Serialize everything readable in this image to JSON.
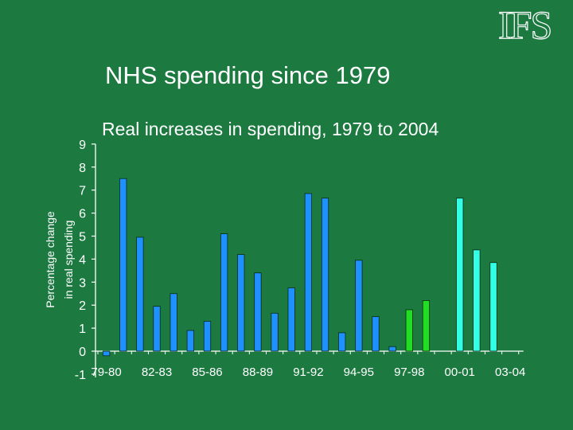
{
  "logo_text": "IFS",
  "slide_title": "NHS spending since 1979",
  "chart_data": {
    "type": "bar",
    "title": "Real increases in spending, 1979 to 2004",
    "xlabel": "",
    "ylabel_lines": [
      "Percentage change",
      "in real spending"
    ],
    "ylim": [
      -1,
      9
    ],
    "yticks": [
      -1,
      0,
      1,
      2,
      3,
      4,
      5,
      6,
      7,
      8,
      9
    ],
    "xtick_labels": [
      "79-80",
      "82-83",
      "85-86",
      "88-89",
      "91-92",
      "94-95",
      "97-98",
      "00-01",
      "03-04"
    ],
    "categories": [
      "79-80",
      "80-81",
      "81-82",
      "82-83",
      "83-84",
      "84-85",
      "85-86",
      "86-87",
      "87-88",
      "88-89",
      "89-90",
      "90-91",
      "91-92",
      "92-93",
      "93-94",
      "94-95",
      "95-96",
      "96-97",
      "97-98",
      "98-99",
      "99-00",
      "00-01",
      "01-02",
      "02-03",
      "03-04"
    ],
    "values": [
      -0.2,
      7.5,
      4.95,
      1.95,
      2.5,
      0.9,
      1.3,
      5.1,
      4.2,
      3.4,
      1.65,
      2.75,
      6.85,
      6.65,
      0.8,
      3.95,
      1.5,
      0.2,
      1.8,
      2.2,
      null,
      6.65,
      4.4,
      3.85,
      null
    ],
    "colors": [
      "#1e90ff",
      "#1e90ff",
      "#1e90ff",
      "#1e90ff",
      "#1e90ff",
      "#1e90ff",
      "#1e90ff",
      "#1e90ff",
      "#1e90ff",
      "#1e90ff",
      "#1e90ff",
      "#1e90ff",
      "#1e90ff",
      "#1e90ff",
      "#1e90ff",
      "#1e90ff",
      "#1e90ff",
      "#1e90ff",
      "#22dd22",
      "#22dd22",
      "#22dd22",
      "#33ffe6",
      "#33ffe6",
      "#33ffe6",
      "#33ffe6"
    ],
    "grid": false,
    "legend": "none"
  }
}
